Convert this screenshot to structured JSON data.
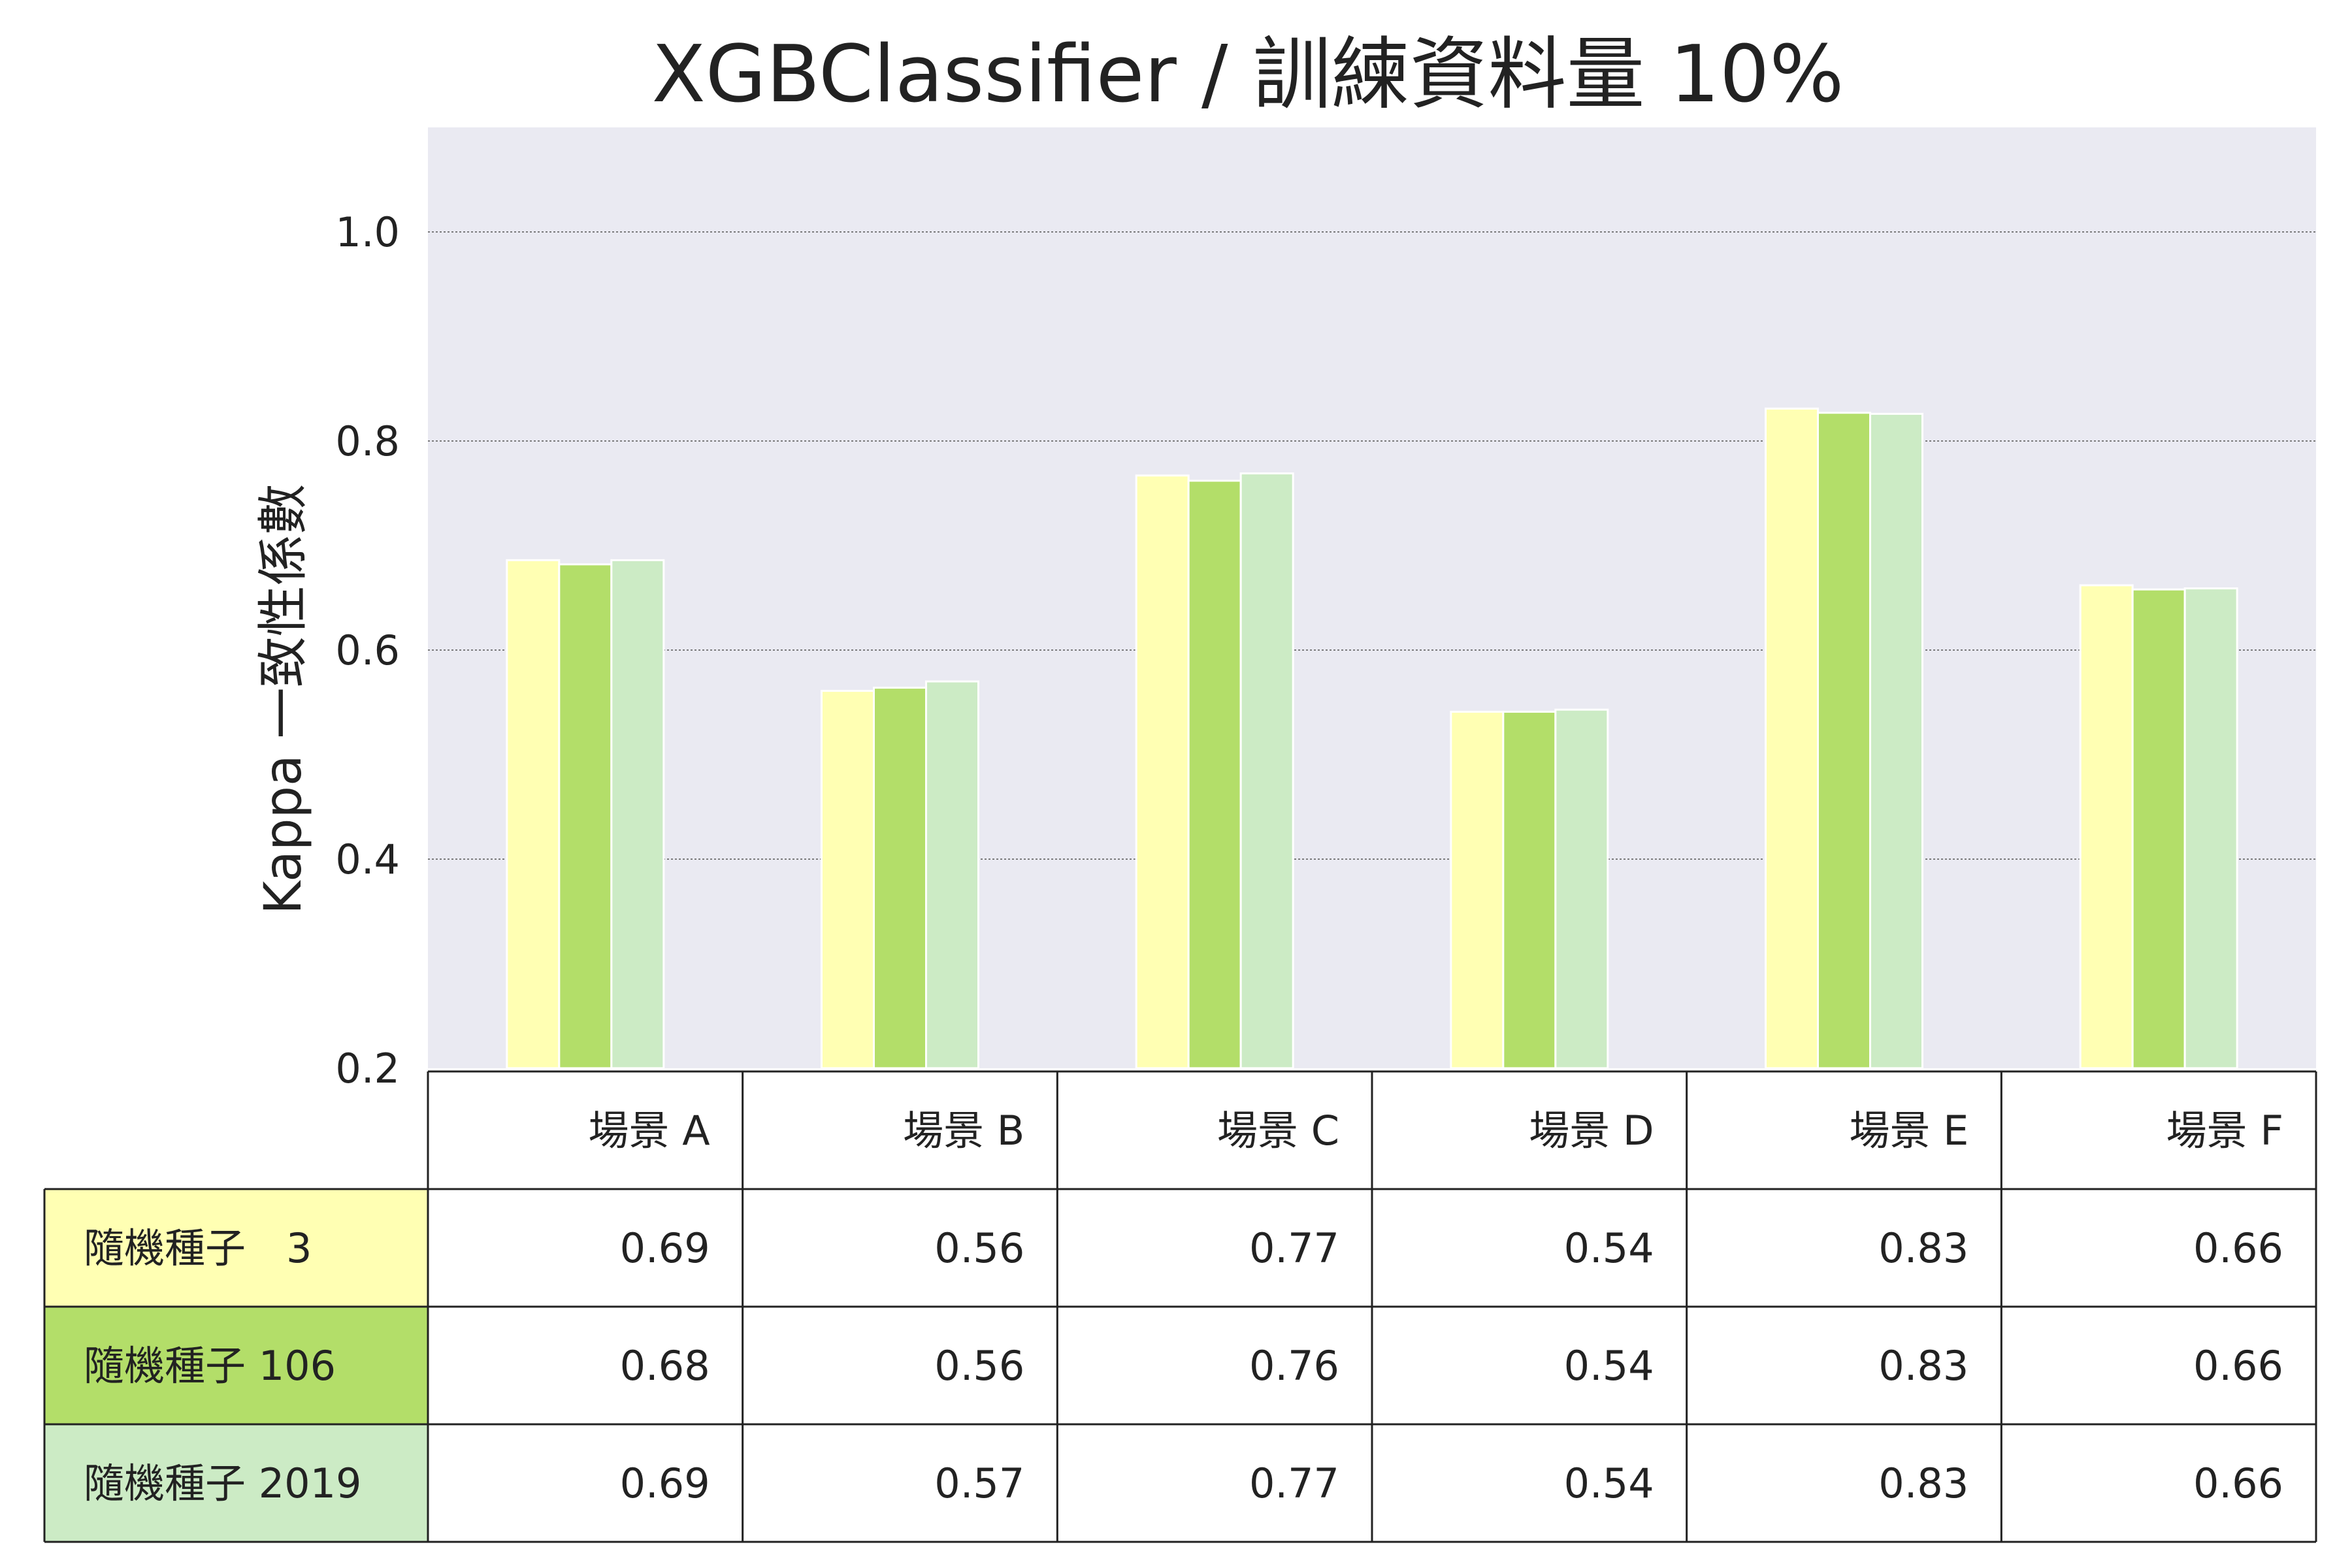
{
  "chart_data": {
    "type": "bar",
    "title": "XGBClassifier / 訓練資料量 10%",
    "xlabel": "",
    "ylabel": "Kappa 一致性係數",
    "ylim": [
      0.2,
      1.1
    ],
    "yticks": [
      0.2,
      0.4,
      0.6,
      0.8,
      1.0
    ],
    "y_tick_labels": [
      "0.2",
      "0.4",
      "0.6",
      "0.8",
      "1.0"
    ],
    "grid": true,
    "categories": [
      "場景 A",
      "場景 B",
      "場景 C",
      "場景 D",
      "場景 E",
      "場景 F"
    ],
    "series": [
      {
        "name": "隨機種子　3",
        "color": "#ffffb3",
        "values": [
          0.686,
          0.561,
          0.767,
          0.541,
          0.831,
          0.662
        ],
        "labels": [
          "0.69",
          "0.56",
          "0.77",
          "0.54",
          "0.83",
          "0.66"
        ]
      },
      {
        "name": "隨機種子  106",
        "color": "#b3de69",
        "values": [
          0.682,
          0.564,
          0.762,
          0.541,
          0.827,
          0.658
        ],
        "labels": [
          "0.68",
          "0.56",
          "0.76",
          "0.54",
          "0.83",
          "0.66"
        ]
      },
      {
        "name": "隨機種子 2019",
        "color": "#ccebc5",
        "values": [
          0.686,
          0.57,
          0.769,
          0.543,
          0.826,
          0.659
        ],
        "labels": [
          "0.69",
          "0.57",
          "0.77",
          "0.54",
          "0.83",
          "0.66"
        ]
      }
    ],
    "legend": "table-below"
  }
}
